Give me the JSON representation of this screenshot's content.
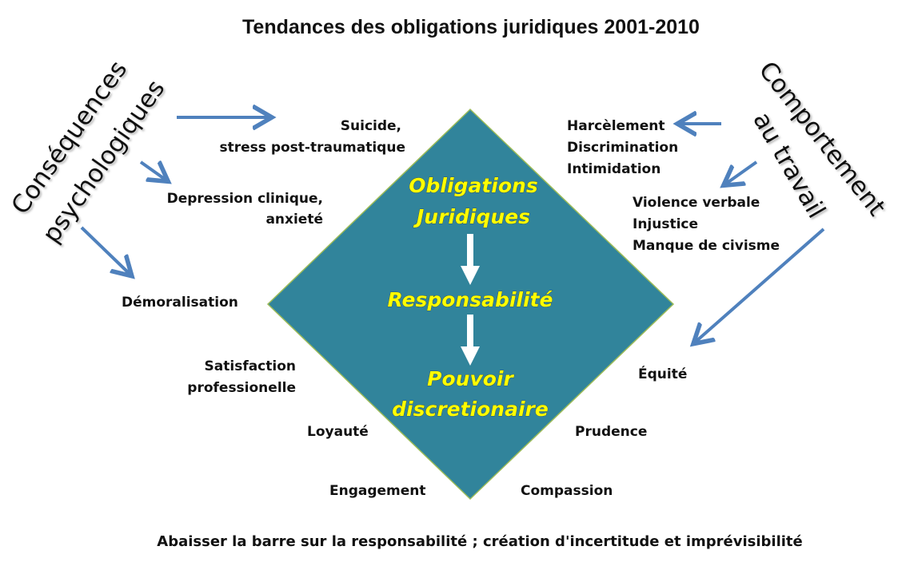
{
  "title": "Tendances des obligations juridiques 2001-2010",
  "left_heading": {
    "line1": "Conséquences",
    "line2": "psychologiques"
  },
  "right_heading": {
    "line1": "Comportement",
    "line2": "au travail"
  },
  "center": {
    "step1_line1": "Obligations",
    "step1_line2": "Juridiques",
    "step2": "Responsabilité",
    "step3_line1": "Pouvoir",
    "step3_line2": "discretionaire"
  },
  "left_items": {
    "suicide_line1": "Suicide,",
    "suicide_line2": "stress post-traumatique",
    "depression_line1": "Depression clinique,",
    "depression_line2": "anxieté",
    "demoralisation": "Démoralisation"
  },
  "right_items": {
    "group1": [
      "Harcèlement",
      "Discrimination",
      "Intimidation"
    ],
    "group2": [
      "Violence verbale",
      "Injustice",
      "Manque de civisme"
    ],
    "equite": "Équité"
  },
  "lower_left": {
    "satisfaction_line1": "Satisfaction",
    "satisfaction_line2": "professionelle",
    "loyaute": "Loyauté",
    "engagement": "Engagement"
  },
  "lower_right": {
    "prudence": "Prudence",
    "compassion": "Compassion"
  },
  "footer": "Abaisser la barre sur la responsabilité ; création d'incertitude et imprévisibilité",
  "colors": {
    "diamond": "#31849b",
    "arrow": "#4f81bd",
    "center_text": "#ffff00"
  }
}
